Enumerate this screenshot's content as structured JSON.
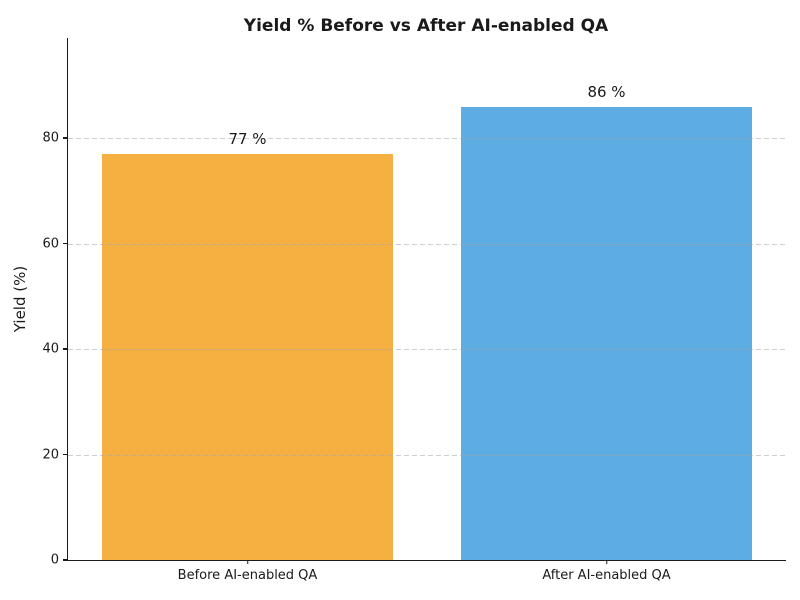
{
  "chart_data": {
    "type": "bar",
    "title": "Yield % Before vs After AI-enabled QA",
    "categories": [
      "Before AI-enabled QA",
      "After AI-enabled QA"
    ],
    "values": [
      77,
      86
    ],
    "bar_labels": [
      "77 %",
      "86 %"
    ],
    "bar_colors": [
      "#F5B041",
      "#5DADE2"
    ],
    "xlabel": "",
    "ylabel": "Yield (%)",
    "ylim": [
      0,
      99
    ],
    "yticks": [
      0,
      20,
      40,
      60,
      80
    ],
    "grid": "horizontal-dashed-overlaying-bars",
    "grid_color": "#cccccc",
    "axis_color": "#1a1a1a",
    "text_color": "#1a1a1a",
    "background": "#ffffff",
    "legend": "none"
  }
}
